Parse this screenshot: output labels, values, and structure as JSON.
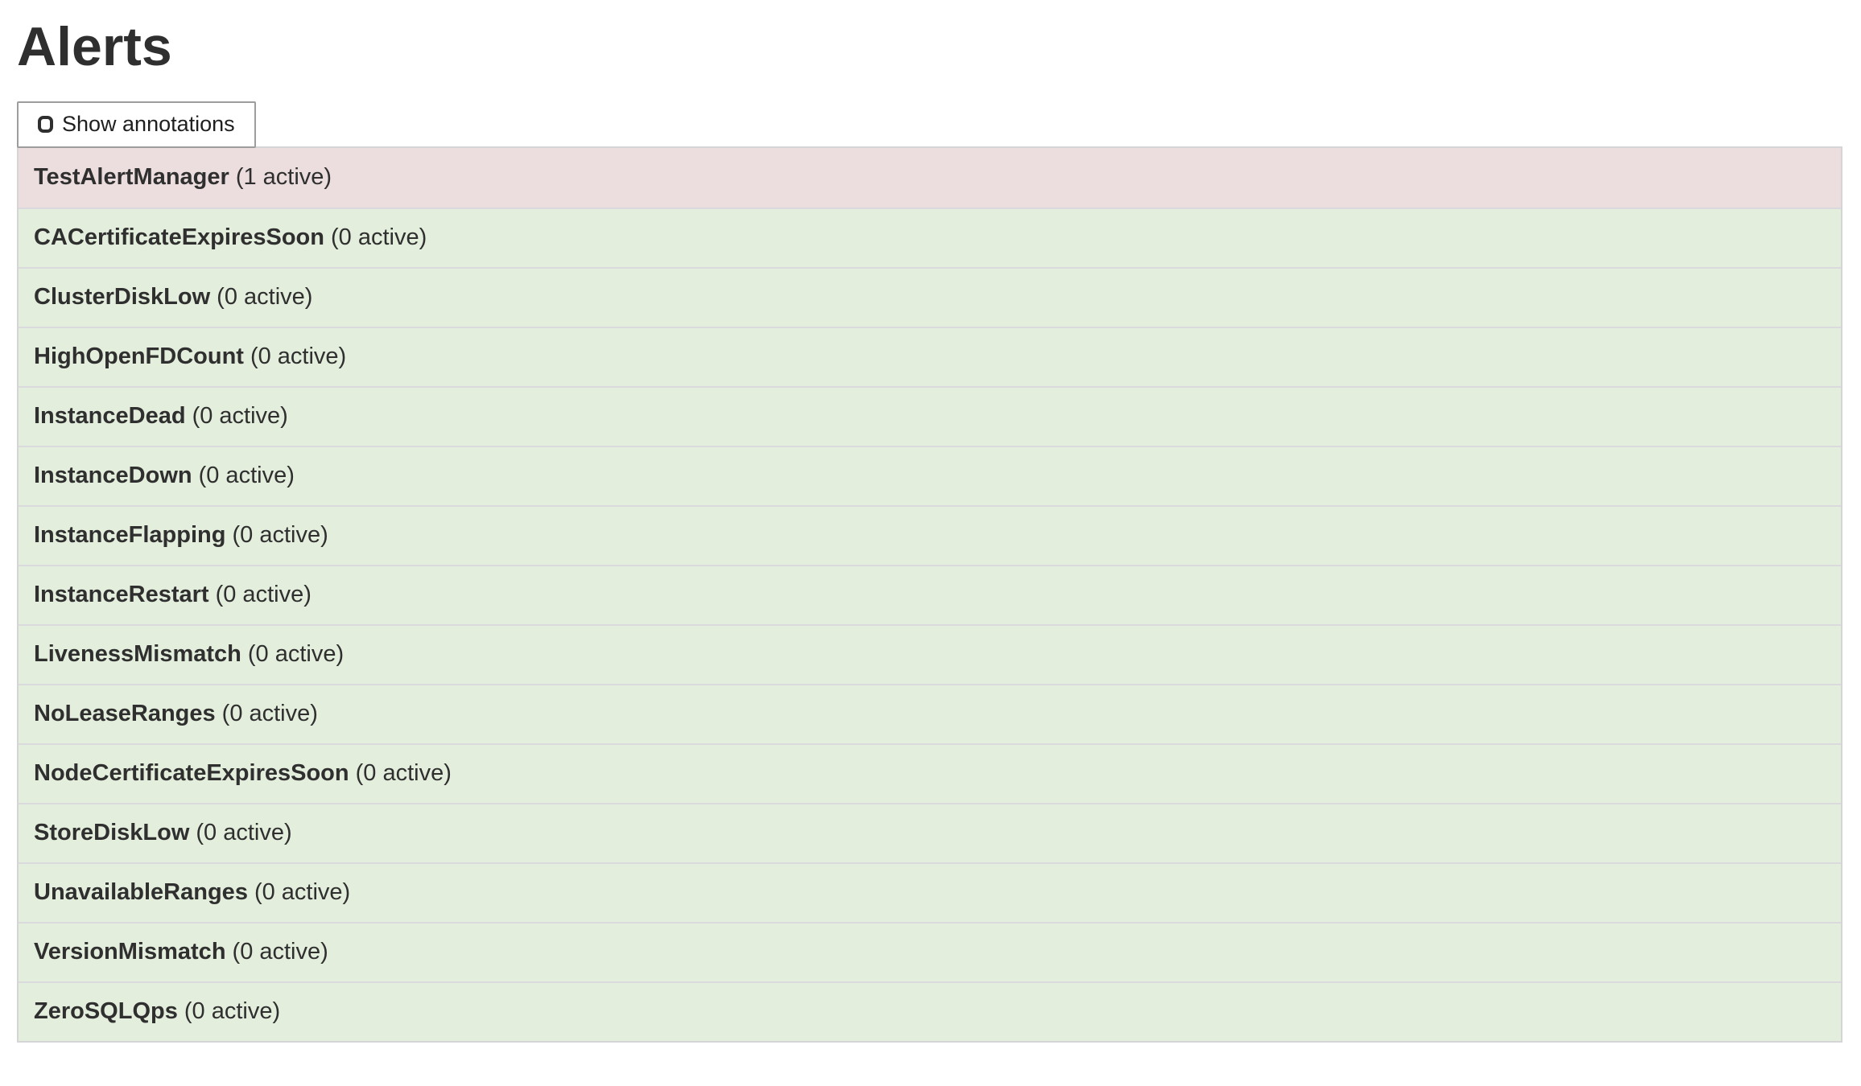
{
  "page": {
    "title": "Alerts"
  },
  "toolbar": {
    "show_annotations_label": "Show annotations",
    "show_annotations_checked": false
  },
  "colors": {
    "firing_row_bg": "#ecdede",
    "normal_row_bg": "#e3eedc",
    "row_divider": "#dadade",
    "table_border": "#d5d5d7",
    "text": "#2f2f2f",
    "button_border": "#9d9d9d"
  },
  "alerts": [
    {
      "name": "TestAlertManager",
      "active_count": 1,
      "count_label": "(1 active)"
    },
    {
      "name": "CACertificateExpiresSoon",
      "active_count": 0,
      "count_label": "(0 active)"
    },
    {
      "name": "ClusterDiskLow",
      "active_count": 0,
      "count_label": "(0 active)"
    },
    {
      "name": "HighOpenFDCount",
      "active_count": 0,
      "count_label": "(0 active)"
    },
    {
      "name": "InstanceDead",
      "active_count": 0,
      "count_label": "(0 active)"
    },
    {
      "name": "InstanceDown",
      "active_count": 0,
      "count_label": "(0 active)"
    },
    {
      "name": "InstanceFlapping",
      "active_count": 0,
      "count_label": "(0 active)"
    },
    {
      "name": "InstanceRestart",
      "active_count": 0,
      "count_label": "(0 active)"
    },
    {
      "name": "LivenessMismatch",
      "active_count": 0,
      "count_label": "(0 active)"
    },
    {
      "name": "NoLeaseRanges",
      "active_count": 0,
      "count_label": "(0 active)"
    },
    {
      "name": "NodeCertificateExpiresSoon",
      "active_count": 0,
      "count_label": "(0 active)"
    },
    {
      "name": "StoreDiskLow",
      "active_count": 0,
      "count_label": "(0 active)"
    },
    {
      "name": "UnavailableRanges",
      "active_count": 0,
      "count_label": "(0 active)"
    },
    {
      "name": "VersionMismatch",
      "active_count": 0,
      "count_label": "(0 active)"
    },
    {
      "name": "ZeroSQLQps",
      "active_count": 0,
      "count_label": "(0 active)"
    }
  ]
}
